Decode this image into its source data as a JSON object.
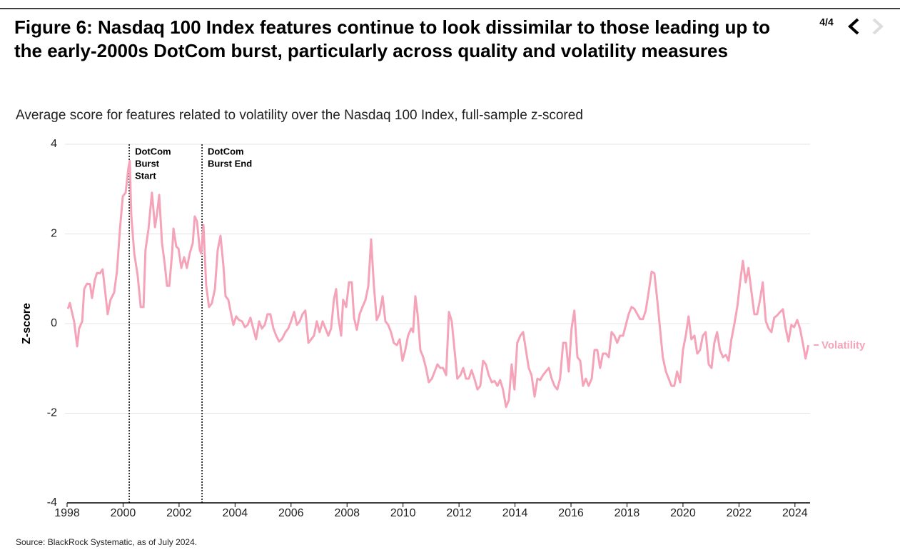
{
  "page_label": "4/4",
  "source": "Source: BlackRock Systematic, as of July 2024.",
  "chart_data": {
    "type": "line",
    "title": "Figure 6: Nasdaq 100 Index features continue to look dissimilar to those leading up to the early-2000s DotCom burst, particularly across quality and volatility measures",
    "subtitle": "Average score for features related to volatility over the Nasdaq 100 Index, full-sample z-scored",
    "y_label": "Z-score",
    "xlim": [
      1998,
      2024.54
    ],
    "xticks": [
      1998,
      2000,
      2002,
      2004,
      2006,
      2008,
      2010,
      2012,
      2014,
      2016,
      2018,
      2020,
      2022,
      2024
    ],
    "ylim": [
      -4,
      4
    ],
    "yticks": [
      -4,
      -2,
      0,
      2,
      4
    ],
    "grid": true,
    "annotations": [
      {
        "x": 2000.22,
        "lines": [
          "DotCom",
          "Burst",
          "Start"
        ]
      },
      {
        "x": 2002.82,
        "lines": [
          "DotCom",
          "Burst End"
        ]
      }
    ],
    "x": [
      1998.03,
      1998.1,
      1998.18,
      1998.25,
      1998.36,
      1998.43,
      1998.54,
      1998.61,
      1998.71,
      1998.82,
      1998.89,
      1998.99,
      1999.07,
      1999.17,
      1999.27,
      1999.35,
      1999.45,
      1999.55,
      1999.68,
      1999.78,
      1999.89,
      1999.99,
      2000.09,
      2000.19,
      2000.24,
      2000.29,
      2000.4,
      2000.52,
      2000.63,
      2000.73,
      2000.8,
      2000.91,
      2001.03,
      2001.14,
      2001.21,
      2001.29,
      2001.39,
      2001.49,
      2001.57,
      2001.65,
      2001.75,
      2001.8,
      2001.9,
      2001.98,
      2002.08,
      2002.18,
      2002.28,
      2002.38,
      2002.49,
      2002.56,
      2002.64,
      2002.74,
      2002.79,
      2002.87,
      2002.97,
      2003.07,
      2003.17,
      2003.28,
      2003.38,
      2003.48,
      2003.58,
      2003.66,
      2003.76,
      2003.86,
      2003.94,
      2004.04,
      2004.14,
      2004.25,
      2004.35,
      2004.45,
      2004.55,
      2004.65,
      2004.75,
      2004.86,
      2004.96,
      2005.06,
      2005.16,
      2005.26,
      2005.37,
      2005.47,
      2005.57,
      2005.67,
      2005.8,
      2005.9,
      2006.0,
      2006.11,
      2006.21,
      2006.31,
      2006.41,
      2006.51,
      2006.62,
      2006.72,
      2006.82,
      2006.92,
      2007.02,
      2007.13,
      2007.23,
      2007.33,
      2007.43,
      2007.53,
      2007.61,
      2007.69,
      2007.79,
      2007.86,
      2007.97,
      2008.07,
      2008.17,
      2008.25,
      2008.35,
      2008.45,
      2008.55,
      2008.66,
      2008.76,
      2008.86,
      2008.96,
      2009.06,
      2009.16,
      2009.27,
      2009.37,
      2009.47,
      2009.57,
      2009.67,
      2009.78,
      2009.88,
      2009.98,
      2010.08,
      2010.18,
      2010.29,
      2010.36,
      2010.44,
      2010.52,
      2010.62,
      2010.72,
      2010.82,
      2010.92,
      2011.03,
      2011.13,
      2011.23,
      2011.33,
      2011.43,
      2011.54,
      2011.64,
      2011.74,
      2011.84,
      2011.94,
      2012.05,
      2012.15,
      2012.25,
      2012.35,
      2012.45,
      2012.55,
      2012.66,
      2012.76,
      2012.86,
      2012.96,
      2013.06,
      2013.17,
      2013.27,
      2013.37,
      2013.47,
      2013.57,
      2013.68,
      2013.78,
      2013.88,
      2013.98,
      2014.08,
      2014.19,
      2014.29,
      2014.39,
      2014.49,
      2014.59,
      2014.7,
      2014.8,
      2014.9,
      2015.0,
      2015.1,
      2015.21,
      2015.31,
      2015.41,
      2015.51,
      2015.61,
      2015.72,
      2015.82,
      2015.92,
      2016.02,
      2016.12,
      2016.23,
      2016.33,
      2016.43,
      2016.53,
      2016.63,
      2016.74,
      2016.84,
      2016.94,
      2017.04,
      2017.14,
      2017.25,
      2017.35,
      2017.45,
      2017.55,
      2017.65,
      2017.75,
      2017.86,
      2017.96,
      2018.06,
      2018.16,
      2018.26,
      2018.37,
      2018.47,
      2018.57,
      2018.67,
      2018.77,
      2018.88,
      2018.98,
      2019.08,
      2019.18,
      2019.28,
      2019.39,
      2019.49,
      2019.59,
      2019.69,
      2019.79,
      2019.9,
      2020.0,
      2020.1,
      2020.2,
      2020.3,
      2020.41,
      2020.51,
      2020.61,
      2020.71,
      2020.81,
      2020.92,
      2021.02,
      2021.12,
      2021.22,
      2021.32,
      2021.43,
      2021.53,
      2021.63,
      2021.73,
      2021.83,
      2021.94,
      2022.04,
      2022.14,
      2022.24,
      2022.34,
      2022.45,
      2022.55,
      2022.65,
      2022.75,
      2022.85,
      2022.96,
      2023.06,
      2023.16,
      2023.26,
      2023.36,
      2023.47,
      2023.57,
      2023.67,
      2023.77,
      2023.87,
      2023.97,
      2024.08,
      2024.18,
      2024.28,
      2024.38,
      2024.48
    ],
    "series": [
      {
        "name": "Volatility",
        "color": "#f5a3b8",
        "values": [
          0.33,
          0.46,
          0.24,
          0.05,
          -0.51,
          -0.11,
          0.05,
          0.77,
          0.89,
          0.88,
          0.57,
          0.97,
          1.13,
          1.12,
          1.21,
          0.77,
          0.21,
          0.53,
          0.69,
          1.16,
          2.12,
          2.84,
          2.92,
          3.47,
          3.63,
          2.44,
          1.56,
          1.08,
          0.37,
          0.37,
          1.64,
          2.12,
          2.92,
          2.15,
          2.44,
          2.87,
          1.8,
          1.32,
          0.84,
          0.84,
          1.56,
          2.12,
          1.72,
          1.67,
          1.24,
          1.48,
          1.24,
          1.56,
          1.8,
          2.39,
          2.28,
          1.64,
          1.56,
          2.2,
          0.84,
          0.37,
          0.45,
          0.77,
          1.64,
          1.96,
          1.32,
          0.61,
          0.53,
          0.21,
          -0.03,
          0.16,
          0.08,
          0.05,
          -0.08,
          -0.03,
          0.13,
          -0.11,
          -0.35,
          0.05,
          -0.11,
          -0.03,
          0.21,
          0.21,
          -0.11,
          -0.27,
          -0.4,
          -0.35,
          -0.19,
          -0.11,
          0.05,
          0.26,
          -0.03,
          0.05,
          0.21,
          0.29,
          -0.43,
          -0.35,
          -0.27,
          0.05,
          -0.19,
          0.05,
          -0.11,
          -0.27,
          -0.11,
          0.53,
          0.77,
          0.13,
          -0.27,
          0.53,
          0.37,
          0.92,
          0.92,
          0.13,
          -0.14,
          0.21,
          0.37,
          0.53,
          0.84,
          1.88,
          0.84,
          0.08,
          0.21,
          0.61,
          0.05,
          -0.03,
          -0.19,
          -0.43,
          -0.48,
          -0.35,
          -0.83,
          -0.59,
          -0.27,
          -0.11,
          -0.19,
          0.61,
          0.21,
          -0.59,
          -0.75,
          -0.99,
          -1.31,
          -1.23,
          -1.07,
          -0.91,
          -0.99,
          -0.99,
          -1.15,
          0.26,
          0.05,
          -0.59,
          -1.23,
          -1.15,
          -0.99,
          -1.23,
          -1.23,
          -1.04,
          -1.23,
          -1.47,
          -1.39,
          -0.83,
          -0.91,
          -1.15,
          -1.31,
          -1.28,
          -1.39,
          -1.26,
          -1.47,
          -1.86,
          -1.71,
          -0.91,
          -1.47,
          -0.43,
          -0.27,
          -0.19,
          -0.59,
          -0.99,
          -1.15,
          -1.63,
          -1.23,
          -1.26,
          -1.15,
          -1.07,
          -0.99,
          -1.23,
          -1.39,
          -1.47,
          -1.23,
          -0.43,
          -0.43,
          -1.07,
          -0.11,
          0.29,
          -0.75,
          -0.83,
          -1.39,
          -1.23,
          -1.39,
          -1.23,
          -0.59,
          -0.59,
          -0.99,
          -0.67,
          -0.67,
          -0.75,
          -0.19,
          -0.27,
          -0.43,
          -0.27,
          -0.27,
          -0.03,
          0.21,
          0.37,
          0.33,
          0.21,
          0.1,
          0.1,
          0.29,
          0.69,
          1.16,
          1.12,
          0.53,
          -0.11,
          -0.75,
          -1.07,
          -1.23,
          -1.39,
          -1.39,
          -1.07,
          -1.31,
          -0.59,
          -0.27,
          0.16,
          -0.35,
          -0.27,
          -0.67,
          -0.59,
          -0.27,
          -0.19,
          -0.91,
          -0.99,
          -0.43,
          -0.19,
          -0.59,
          -0.75,
          -0.7,
          -0.83,
          -0.35,
          -0.03,
          0.37,
          0.92,
          1.4,
          0.92,
          1.24,
          0.69,
          0.21,
          0.21,
          0.53,
          0.92,
          0.05,
          -0.11,
          -0.19,
          0.13,
          0.18,
          0.26,
          0.32,
          -0.11,
          -0.4,
          -0.03,
          -0.08,
          0.08,
          -0.11,
          -0.43,
          -0.78,
          -0.48
        ]
      }
    ]
  }
}
